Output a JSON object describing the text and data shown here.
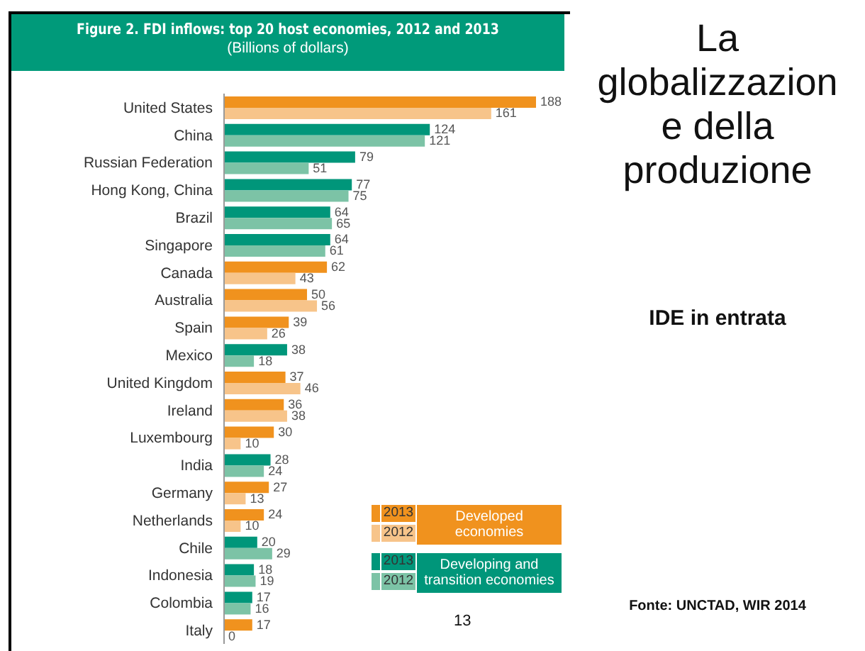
{
  "chart_data": {
    "type": "bar",
    "orientation": "horizontal",
    "title": "Figure 2. FDI inflows: top 20 host economies, 2012 and 2013",
    "subtitle": "(Billions of dollars)",
    "categories": [
      "United States",
      "China",
      "Russian Federation",
      "Hong Kong, China",
      "Brazil",
      "Singapore",
      "Canada",
      "Australia",
      "Spain",
      "Mexico",
      "United Kingdom",
      "Ireland",
      "Luxembourg",
      "India",
      "Germany",
      "Netherlands",
      "Chile",
      "Indonesia",
      "Colombia",
      "Italy"
    ],
    "series": [
      {
        "name": "2013",
        "values": [
          188,
          124,
          79,
          77,
          64,
          64,
          62,
          50,
          39,
          38,
          37,
          36,
          30,
          28,
          27,
          24,
          20,
          18,
          17,
          17
        ],
        "colors": [
          "#f0921e",
          "#00967a",
          "#00967a",
          "#00967a",
          "#00967a",
          "#00967a",
          "#f0921e",
          "#f0921e",
          "#f0921e",
          "#00967a",
          "#f0921e",
          "#f0921e",
          "#f0921e",
          "#00967a",
          "#f0921e",
          "#f0921e",
          "#00967a",
          "#00967a",
          "#00967a",
          "#f0921e"
        ]
      },
      {
        "name": "2012",
        "values": [
          161,
          121,
          51,
          75,
          65,
          61,
          43,
          56,
          26,
          18,
          46,
          38,
          10,
          24,
          13,
          10,
          29,
          19,
          16,
          0
        ],
        "colors": [
          "#f7c48a",
          "#7cc3a6",
          "#7cc3a6",
          "#7cc3a6",
          "#7cc3a6",
          "#7cc3a6",
          "#f7c48a",
          "#f7c48a",
          "#f7c48a",
          "#7cc3a6",
          "#f7c48a",
          "#f7c48a",
          "#f7c48a",
          "#7cc3a6",
          "#f7c48a",
          "#f7c48a",
          "#7cc3a6",
          "#7cc3a6",
          "#7cc3a6",
          "#7cc3a6"
        ]
      }
    ],
    "data_labels": true,
    "legend": "bottom right",
    "annotations": [
      "Developed economies",
      "Developing and transition economies",
      "La globalizzazione della produzione",
      "IDE in entrata",
      "Fonte: UNCTAD, WIR 2014",
      "13"
    ]
  }
}
